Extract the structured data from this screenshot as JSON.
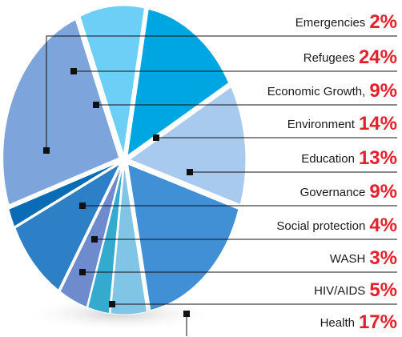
{
  "chart_data": {
    "type": "pie",
    "categories": [
      "Emergencies",
      "Refugees",
      "Economic Growth,",
      "Environment",
      "Education",
      "Governance",
      "Social protection",
      "WASH",
      "HIV/AIDS",
      "Health"
    ],
    "values": [
      2,
      24,
      9,
      14,
      13,
      9,
      4,
      3,
      5,
      17
    ],
    "value_labels": [
      "2%",
      "24%",
      "9%",
      "14%",
      "13%",
      "9%",
      "4%",
      "3%",
      "5%",
      "17%"
    ],
    "colors": [
      "#0a6cb4",
      "#7ea4dc",
      "#6dcff6",
      "#00a6e2",
      "#a8caee",
      "#2e80c6",
      "#6d8bcd",
      "#34aacf",
      "#80c4e6",
      "#4190d6"
    ]
  }
}
